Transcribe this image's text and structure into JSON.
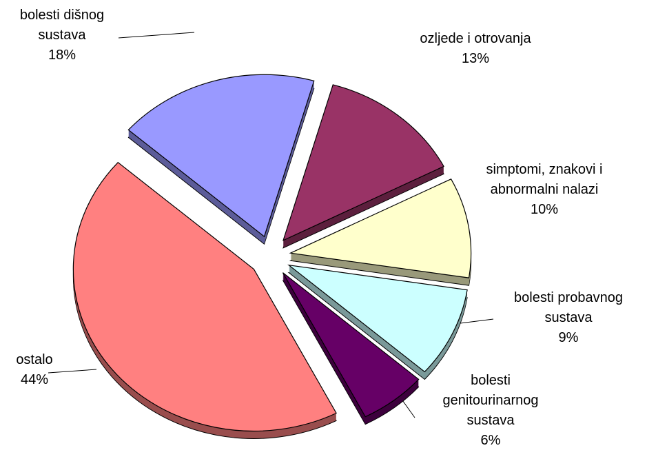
{
  "chart_data": {
    "type": "pie",
    "categories": [
      "ozljede i otrovanja",
      "simptomi, znakovi i abnormalni nalazi",
      "bolesti probavnog sustava",
      "bolesti genitourinarnog sustava",
      "ostalo",
      "bolesti dišnog sustava"
    ],
    "values": [
      13,
      10,
      9,
      6,
      44,
      18
    ],
    "value_labels": [
      "13%",
      "10%",
      "9%",
      "6%",
      "44%",
      "18%"
    ],
    "colors": [
      "#993366",
      "#ffffcc",
      "#ccffff",
      "#660066",
      "#ff8080",
      "#9999ff"
    ]
  }
}
